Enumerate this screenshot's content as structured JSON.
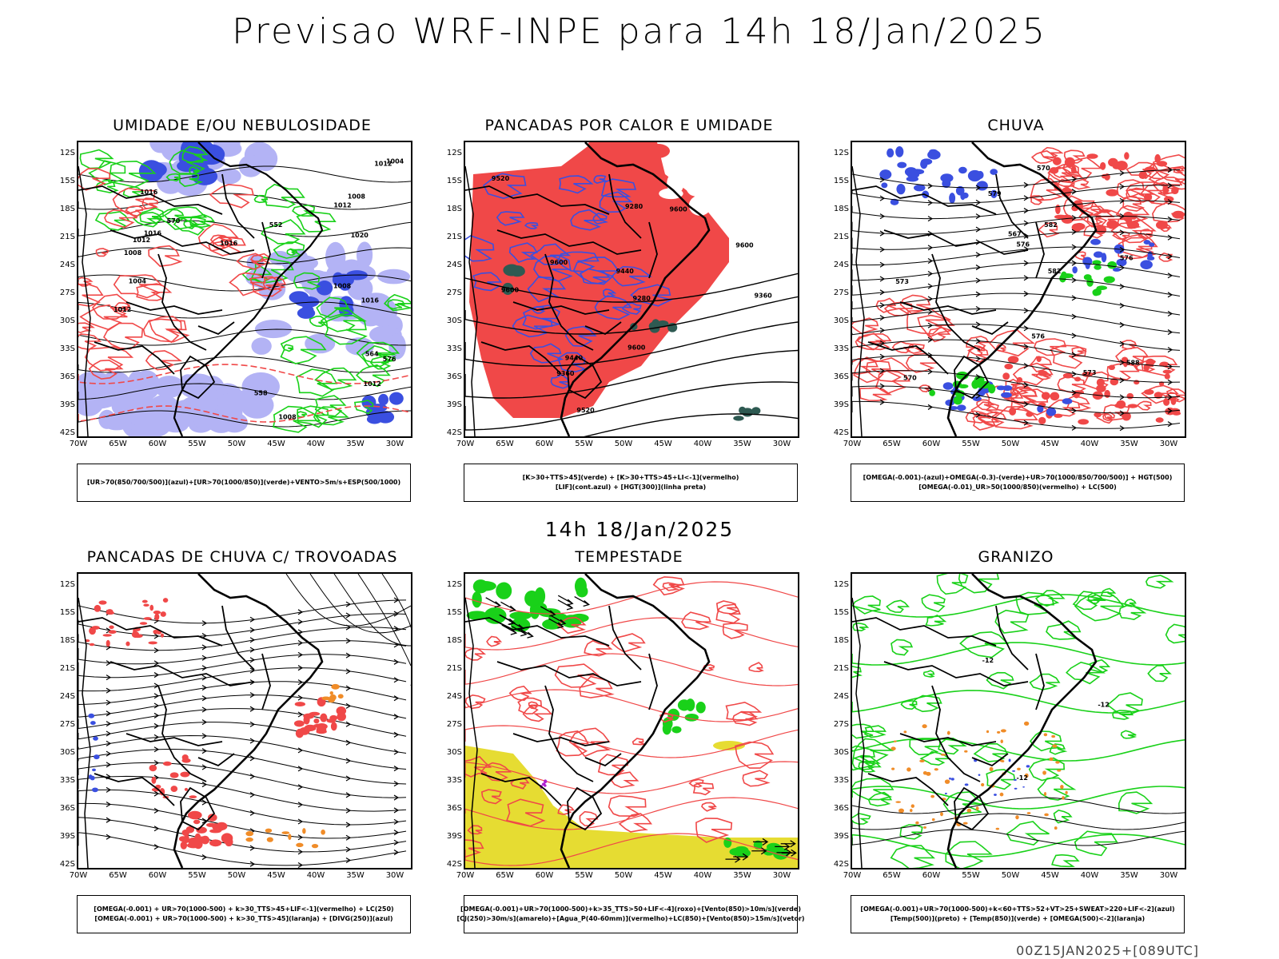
{
  "header": {
    "title": "Previsao WRF-INPE  para 14h 18/Jan/2025"
  },
  "mid_title": "14h 18/Jan/2025",
  "footer": "00Z15JAN2025+[089UTC]",
  "axes": {
    "lat_labels": [
      "12S",
      "15S",
      "18S",
      "21S",
      "24S",
      "27S",
      "30S",
      "33S",
      "36S",
      "39S",
      "42S"
    ],
    "lon_labels": [
      "70W",
      "65W",
      "60W",
      "55W",
      "50W",
      "45W",
      "40W",
      "35W",
      "30W"
    ]
  },
  "colors": {
    "blue": "#3a4fe0",
    "light_blue": "#b3b3f5",
    "green": "#19d119",
    "red": "#f04848",
    "orange": "#f08c28",
    "yellow": "#e6dc32",
    "dark_teal": "#2e5a52",
    "purple": "#b020d0"
  },
  "panels": [
    {
      "id": "umidade",
      "title": "UMIDADE E/OU NEBULOSIDADE",
      "legend": [
        "[UR>70(850/700/500)](azul)+[UR>70(1000/850)](verde)+VENTO>5m/s+ESP(500/1000)"
      ],
      "contour_labels": [
        "1012",
        "1012",
        "1008",
        "1008",
        "1012",
        "1004",
        "1008",
        "1004",
        "1016",
        "1008",
        "1012",
        "1016",
        "1020",
        "1016",
        "1012",
        "576",
        "570",
        "564",
        "558",
        "552",
        "1016"
      ]
    },
    {
      "id": "pancadas_calor",
      "title": "PANCADAS POR CALOR E UMIDADE",
      "legend": [
        "[K>30+TTS>45](verde) + [K>30+TTS>45+LI<-1](vermelho)",
        "[LIF](cont.azul) + [HGT(300)](linha preta)"
      ],
      "contour_labels": [
        "9600",
        "9600",
        "9600",
        "9600",
        "9600",
        "9520",
        "9440",
        "9360",
        "9520",
        "9440",
        "9360",
        "9280",
        "9280"
      ]
    },
    {
      "id": "chuva",
      "title": "CHUVA",
      "legend": [
        "[OMEGA(-0.001)-(azul)+OMEGA(-0.3)-(verde)+UR>70(1000/850/700/500)] + HGT(500)",
        "[OMEGA(-0.01)_UR>50(1000/850)(vermelho) + LC(500)"
      ],
      "contour_labels": [
        "588",
        "582",
        "576",
        "579",
        "576",
        "573",
        "570",
        "582",
        "576",
        "573",
        "570",
        "567"
      ]
    },
    {
      "id": "trovoadas",
      "title": "PANCADAS DE CHUVA C/ TROVOADAS",
      "legend": [
        "[OMEGA(-0.001) + UR>70(1000-500) + k>30_TTS>45+LIF<-1](vermelho) + LC(250)",
        "[OMEGA(-0.001) + UR>70(1000-500) + k>30_TTS>45](laranja) + [DIVG(250)](azul)"
      ],
      "contour_labels": []
    },
    {
      "id": "tempestade",
      "title": "TEMPESTADE",
      "legend": [
        "[OMEGA(-0.001)+UR>70(1000-500)+k>35_TTS>50+LIF<-4](roxo)+[Vento(850)>10m/s](verde)",
        "[CJ(250)>30m/s](amarelo)+[Agua_P(40-60mm)](vermelho)+LC(850)+[Vento(850)>15m/s](vetor)"
      ],
      "contour_labels": []
    },
    {
      "id": "granizo",
      "title": "GRANIZO",
      "legend": [
        "[OMEGA(-0.001)+UR>70(1000-500)+k<60+TTS>52+VT>25+SWEAT>220+LIF<-2](azul)",
        "[Temp(500)](preto) + [Temp(850)](verde) + [OMEGA(500)<-2](laranja)"
      ],
      "contour_labels": [
        "-12",
        "-12",
        "-12"
      ]
    }
  ]
}
